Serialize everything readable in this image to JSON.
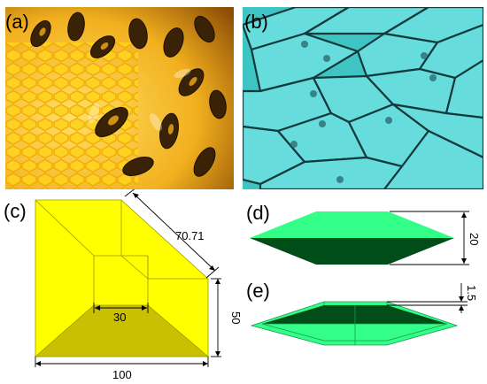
{
  "panels": {
    "a": {
      "label": "(a)"
    },
    "b": {
      "label": "(b)"
    },
    "c": {
      "label": "(c)",
      "dims": {
        "diagonal": "70.71",
        "inner": "30",
        "height": "50",
        "width": "100"
      }
    },
    "d": {
      "label": "(d)",
      "dims": {
        "height": "20"
      }
    },
    "e": {
      "label": "(e)",
      "dims": {
        "offset": "1.5"
      }
    }
  },
  "colors": {
    "yellow_light": "#ffff00",
    "yellow_mid": "#f3e900",
    "yellow_dark": "#c8c000",
    "green_light": "#33ff88",
    "green_dark": "#004d1a",
    "cyan_cells": "#3fc4c4"
  }
}
